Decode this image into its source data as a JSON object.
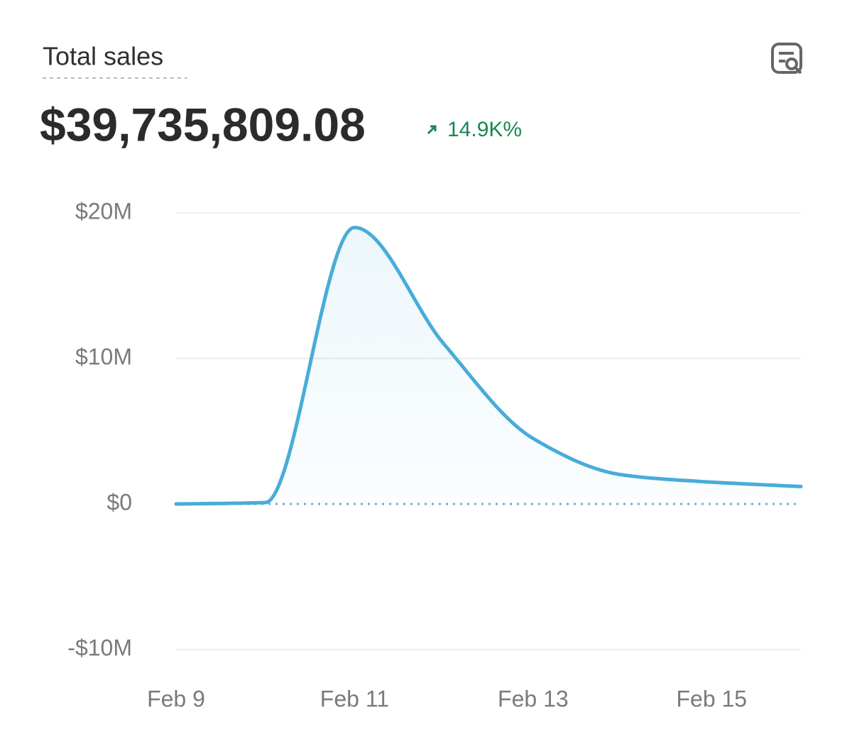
{
  "header": {
    "title": "Total sales",
    "amount": "$39,735,809.08",
    "change": "14.9K%"
  },
  "chart_data": {
    "type": "line",
    "categories": [
      "Feb 9",
      null,
      "Feb 11",
      null,
      "Feb 13",
      null,
      "Feb 15",
      null
    ],
    "values": [
      0,
      100000,
      19000000,
      11000000,
      4500000,
      2000000,
      1500000,
      1200000
    ],
    "color": "#48acd9",
    "ylim": [
      -10000000,
      20000000
    ],
    "yticks": [
      {
        "value": -10000000,
        "label": "-$10M"
      },
      {
        "value": 0,
        "label": "$0"
      },
      {
        "value": 10000000,
        "label": "$10M"
      },
      {
        "value": 20000000,
        "label": "$20M"
      }
    ],
    "grid": true
  }
}
